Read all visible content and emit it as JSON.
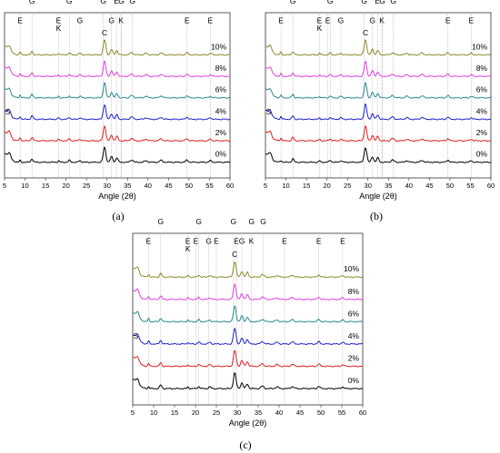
{
  "figure": {
    "panel_labels": [
      "(a)",
      "(b)",
      "(c)"
    ]
  },
  "chart_data": [
    {
      "type": "line",
      "panel": "(a)",
      "xlabel": "Angle (2θ)",
      "ylabel": "",
      "xlim": [
        5,
        60
      ],
      "xticks": [
        5,
        10,
        15,
        20,
        25,
        30,
        35,
        40,
        45,
        50,
        55,
        60
      ],
      "grid": false,
      "series": [
        {
          "name": "0%",
          "color": "#000000"
        },
        {
          "name": "2%",
          "color": "#e02020"
        },
        {
          "name": "4%",
          "color": "#2020cc"
        },
        {
          "name": "6%",
          "color": "#2a8a8a"
        },
        {
          "name": "8%",
          "color": "#e040e0"
        },
        {
          "name": "10%",
          "color": "#8a8a2a"
        }
      ],
      "phase_markers": [
        {
          "label": "E",
          "x": 8.8,
          "row": 2
        },
        {
          "label": "G",
          "x": 11.7,
          "row": 1
        },
        {
          "label": "G",
          "x": 20.8,
          "row": 1
        },
        {
          "label": "E",
          "x": 18.2,
          "row": 2
        },
        {
          "label": "K",
          "x": 18.2,
          "row": 3
        },
        {
          "label": "G",
          "x": 23.4,
          "row": 2
        },
        {
          "label": "G",
          "x": 29.1,
          "row": 1
        },
        {
          "label": "G",
          "x": 31.1,
          "row": 2
        },
        {
          "label": "E",
          "x": 32.3,
          "row": 1
        },
        {
          "label": "G",
          "x": 33.5,
          "row": 1
        },
        {
          "label": "K",
          "x": 33.4,
          "row": 2
        },
        {
          "label": "G",
          "x": 36.2,
          "row": 1
        },
        {
          "label": "E",
          "x": 49.5,
          "row": 2
        },
        {
          "label": "E",
          "x": 55.2,
          "row": 2
        }
      ],
      "annotations": [
        {
          "label": "C",
          "x": 29.4
        },
        {
          "label": "S",
          "x": 6.2
        }
      ]
    },
    {
      "type": "line",
      "panel": "(b)",
      "xlabel": "Angle (2θ)",
      "ylabel": "",
      "xlim": [
        5,
        60
      ],
      "xticks": [
        5,
        10,
        15,
        20,
        25,
        30,
        35,
        40,
        45,
        50,
        55,
        60
      ],
      "grid": false,
      "series": [
        {
          "name": "0%",
          "color": "#000000"
        },
        {
          "name": "2%",
          "color": "#e02020"
        },
        {
          "name": "4%",
          "color": "#2020cc"
        },
        {
          "name": "6%",
          "color": "#2a8a8a"
        },
        {
          "name": "8%",
          "color": "#e040e0"
        },
        {
          "name": "10%",
          "color": "#8a8a2a"
        }
      ],
      "phase_markers": [
        {
          "label": "E",
          "x": 8.8,
          "row": 2
        },
        {
          "label": "G",
          "x": 11.7,
          "row": 1
        },
        {
          "label": "E",
          "x": 18.2,
          "row": 2
        },
        {
          "label": "K",
          "x": 18.2,
          "row": 3
        },
        {
          "label": "G",
          "x": 20.8,
          "row": 1
        },
        {
          "label": "E",
          "x": 20.2,
          "row": 2
        },
        {
          "label": "G",
          "x": 23.4,
          "row": 2
        },
        {
          "label": "G",
          "x": 29.1,
          "row": 1
        },
        {
          "label": "G",
          "x": 31.1,
          "row": 2
        },
        {
          "label": "E",
          "x": 32.3,
          "row": 1
        },
        {
          "label": "G",
          "x": 33.5,
          "row": 1
        },
        {
          "label": "K",
          "x": 33.4,
          "row": 2
        },
        {
          "label": "G",
          "x": 36.2,
          "row": 1
        },
        {
          "label": "E",
          "x": 49.5,
          "row": 2
        },
        {
          "label": "E",
          "x": 55.2,
          "row": 2
        }
      ],
      "annotations": [
        {
          "label": "C",
          "x": 29.4
        },
        {
          "label": "S",
          "x": 6.2
        }
      ]
    },
    {
      "type": "line",
      "panel": "(c)",
      "xlabel": "Angle (2θ)",
      "ylabel": "",
      "xlim": [
        5,
        60
      ],
      "xticks": [
        5,
        10,
        15,
        20,
        25,
        30,
        35,
        40,
        45,
        50,
        55,
        60
      ],
      "grid": false,
      "series": [
        {
          "name": "0%",
          "color": "#000000"
        },
        {
          "name": "2%",
          "color": "#e02020"
        },
        {
          "name": "4%",
          "color": "#2020cc"
        },
        {
          "name": "6%",
          "color": "#2a8a8a"
        },
        {
          "name": "8%",
          "color": "#e040e0"
        },
        {
          "name": "10%",
          "color": "#8a8a2a"
        }
      ],
      "phase_markers": [
        {
          "label": "E",
          "x": 8.8,
          "row": 2
        },
        {
          "label": "G",
          "x": 11.7,
          "row": 1
        },
        {
          "label": "E",
          "x": 18.2,
          "row": 2
        },
        {
          "label": "K",
          "x": 18.2,
          "row": 3
        },
        {
          "label": "E",
          "x": 20.1,
          "row": 2
        },
        {
          "label": "G",
          "x": 20.8,
          "row": 1
        },
        {
          "label": "G",
          "x": 23.2,
          "row": 2
        },
        {
          "label": "E",
          "x": 25.0,
          "row": 2
        },
        {
          "label": "G",
          "x": 29.1,
          "row": 1
        },
        {
          "label": "E",
          "x": 29.8,
          "row": 2
        },
        {
          "label": "G",
          "x": 31.1,
          "row": 2
        },
        {
          "label": "G",
          "x": 33.4,
          "row": 1
        },
        {
          "label": "K",
          "x": 33.4,
          "row": 2
        },
        {
          "label": "G",
          "x": 36.2,
          "row": 1
        },
        {
          "label": "E",
          "x": 41.3,
          "row": 2
        },
        {
          "label": "E",
          "x": 49.5,
          "row": 2
        },
        {
          "label": "E",
          "x": 55.2,
          "row": 2
        }
      ],
      "annotations": [
        {
          "label": "C",
          "x": 29.4
        },
        {
          "label": "S",
          "x": 6.2
        }
      ]
    }
  ]
}
